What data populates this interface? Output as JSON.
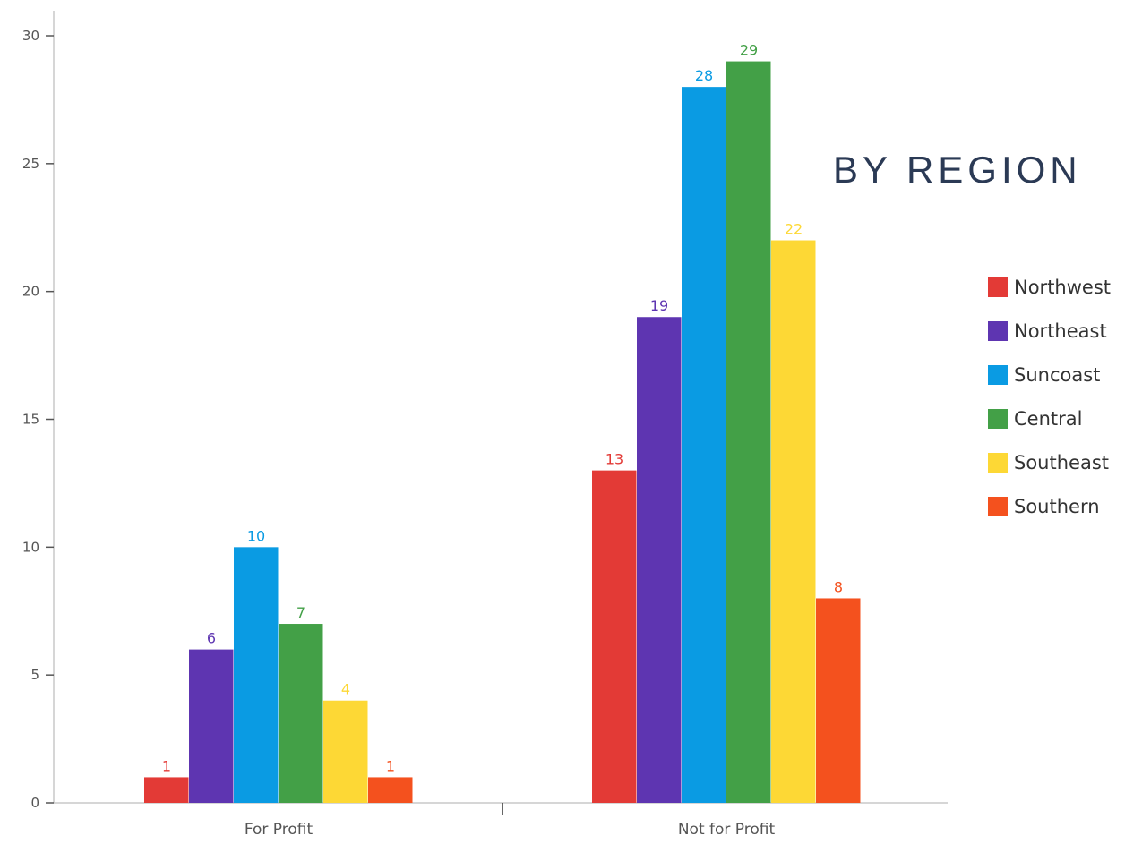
{
  "chart_data": {
    "type": "bar",
    "title": "BY REGION",
    "categories": [
      "For Profit",
      "Not for Profit"
    ],
    "series": [
      {
        "name": "Northwest",
        "color": "#e33a36",
        "values": [
          1,
          13
        ]
      },
      {
        "name": "Northeast",
        "color": "#5e35b1",
        "values": [
          6,
          19
        ]
      },
      {
        "name": "Suncoast",
        "color": "#0a9be3",
        "values": [
          10,
          28
        ]
      },
      {
        "name": "Central",
        "color": "#43a047",
        "values": [
          7,
          29
        ]
      },
      {
        "name": "Southeast",
        "color": "#fdd835",
        "values": [
          4,
          22
        ]
      },
      {
        "name": "Southern",
        "color": "#f4511e",
        "values": [
          1,
          8
        ]
      }
    ],
    "ylim": [
      0,
      30
    ],
    "yticks": [
      0,
      5,
      10,
      15,
      20,
      25,
      30
    ],
    "xlabel": "",
    "ylabel": "",
    "legend_position": "right",
    "data_labels": true,
    "grid": false
  }
}
